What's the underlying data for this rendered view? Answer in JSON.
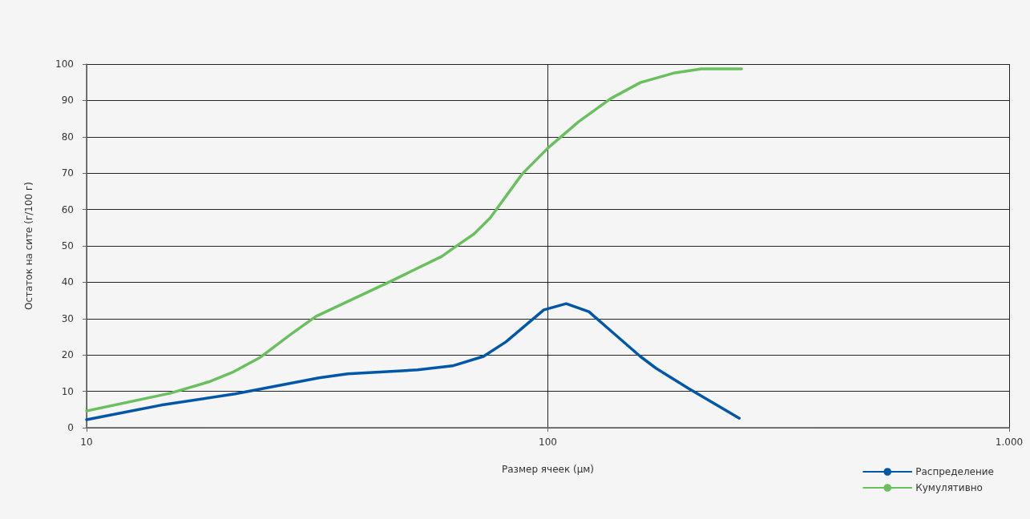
{
  "chart_data": {
    "type": "line",
    "xlabel": "Размер ячеек (µм)",
    "ylabel": "Остаток на сите (г/100 г)",
    "log": "x",
    "xlim": [
      10,
      1000
    ],
    "xticks": [
      10,
      100,
      {
        "value": 1000,
        "label": "1.000"
      }
    ],
    "ylim": [
      0,
      100
    ],
    "yticks": [
      0,
      10,
      20,
      30,
      40,
      50,
      60,
      70,
      80,
      90,
      100
    ],
    "grid": true,
    "legend": "bottom right",
    "marker": "none",
    "line_style": "solid",
    "series": [
      {
        "name": "Распределение",
        "color": "#0057a8",
        "x": [
          10,
          14.5,
          21,
          31.9,
          36.8,
          52.2,
          62.1,
          72.5,
          81.1,
          98,
          109.6,
          122.7,
          158.6,
          171.8,
          201.8,
          260
        ],
        "values": [
          2.2,
          6.2,
          9.3,
          13.7,
          14.8,
          15.9,
          17,
          19.6,
          23.6,
          32.4,
          34.1,
          31.9,
          19.6,
          16.3,
          10.8,
          2.6
        ]
      },
      {
        "name": "Кумулятивно",
        "color": "#6abf5e",
        "x": [
          10,
          15.2,
          18.4,
          20.7,
          23.7,
          27.8,
          31.4,
          45,
          58.9,
          63.1,
          69.2,
          75,
          88,
          100,
          116.5,
          136.8,
          158.6,
          188.4,
          215.2,
          263
        ],
        "values": [
          4.6,
          9.5,
          12.6,
          15.2,
          19.2,
          25.8,
          30.6,
          39.9,
          47.1,
          49.8,
          53.3,
          57.7,
          69.8,
          76.9,
          84.1,
          90.5,
          94.9,
          97.6,
          98.7,
          98.7
        ]
      }
    ]
  }
}
